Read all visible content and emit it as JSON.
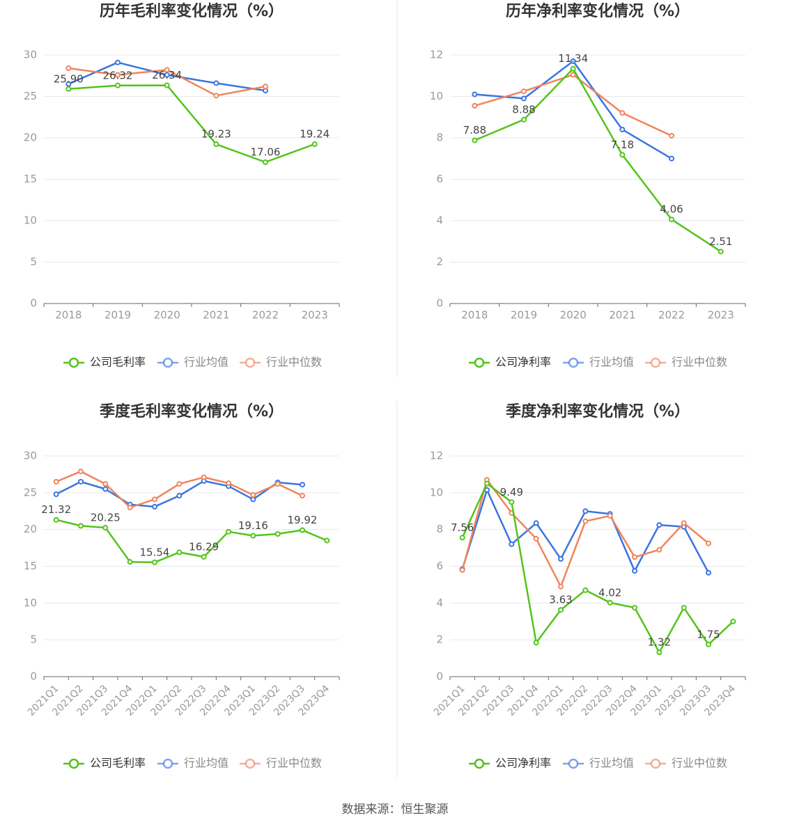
{
  "source_label": "数据来源：恒生聚源",
  "colors": {
    "company": "#52c41a",
    "industry_avg": "#3a74e0",
    "industry_median": "#f0845a",
    "axis": "#666666",
    "grid": "#e6e9f2",
    "title": "#333333",
    "tick": "#999999",
    "divider": "#e8e8e8"
  },
  "chart_data": [
    {
      "type": "line",
      "title": "历年毛利率变化情况（%）",
      "categories": [
        "2018",
        "2019",
        "2020",
        "2021",
        "2022",
        "2023"
      ],
      "ylim": [
        0,
        30
      ],
      "yticks": [
        0,
        5,
        10,
        15,
        20,
        25,
        30
      ],
      "grid": true,
      "legend": "bottom",
      "series": [
        {
          "name": "公司毛利率",
          "role": "company",
          "values": [
            25.9,
            26.32,
            26.34,
            19.23,
            17.06,
            19.24
          ]
        },
        {
          "name": "行业均值",
          "role": "industry_avg",
          "values": [
            26.5,
            29.1,
            27.6,
            26.6,
            25.7,
            null
          ]
        },
        {
          "name": "行业中位数",
          "role": "industry_median",
          "values": [
            28.4,
            27.6,
            28.2,
            25.1,
            26.2,
            null
          ]
        }
      ],
      "labels": [
        {
          "index": 0,
          "text": "25.90"
        },
        {
          "index": 1,
          "text": "26.32"
        },
        {
          "index": 2,
          "text": "26.34"
        },
        {
          "index": 3,
          "text": "19.23"
        },
        {
          "index": 4,
          "text": "17.06"
        },
        {
          "index": 5,
          "text": "19.24"
        }
      ]
    },
    {
      "type": "line",
      "title": "历年净利率变化情况（%）",
      "categories": [
        "2018",
        "2019",
        "2020",
        "2021",
        "2022",
        "2023"
      ],
      "ylim": [
        0,
        12
      ],
      "yticks": [
        0,
        2,
        4,
        6,
        8,
        10,
        12
      ],
      "grid": true,
      "legend": "bottom",
      "series": [
        {
          "name": "公司净利率",
          "role": "company",
          "values": [
            7.88,
            8.88,
            11.34,
            7.18,
            4.06,
            2.51
          ]
        },
        {
          "name": "行业均值",
          "role": "industry_avg",
          "values": [
            10.1,
            9.9,
            11.7,
            8.4,
            7.0,
            null
          ]
        },
        {
          "name": "行业中位数",
          "role": "industry_median",
          "values": [
            9.55,
            10.25,
            11.05,
            9.2,
            8.1,
            null
          ]
        }
      ],
      "labels": [
        {
          "index": 0,
          "text": "7.88"
        },
        {
          "index": 1,
          "text": "8.88"
        },
        {
          "index": 2,
          "text": "11.34"
        },
        {
          "index": 3,
          "text": "7.18"
        },
        {
          "index": 4,
          "text": "4.06"
        },
        {
          "index": 5,
          "text": "2.51"
        }
      ]
    },
    {
      "type": "line",
      "title": "季度毛利率变化情况（%）",
      "categories": [
        "2021Q1",
        "2021Q2",
        "2021Q3",
        "2021Q4",
        "2022Q1",
        "2022Q2",
        "2022Q3",
        "2022Q4",
        "2023Q1",
        "2023Q2",
        "2023Q3",
        "2023Q4"
      ],
      "ylim": [
        0,
        30
      ],
      "yticks": [
        0,
        5,
        10,
        15,
        20,
        25,
        30
      ],
      "grid": true,
      "legend": "bottom",
      "series": [
        {
          "name": "公司毛利率",
          "role": "company",
          "values": [
            21.32,
            20.5,
            20.25,
            15.6,
            15.54,
            16.9,
            16.29,
            19.7,
            19.16,
            19.4,
            19.92,
            18.5
          ]
        },
        {
          "name": "行业均值",
          "role": "industry_avg",
          "values": [
            24.8,
            26.5,
            25.5,
            23.4,
            23.1,
            24.6,
            26.6,
            25.9,
            24.1,
            26.4,
            26.1,
            null
          ]
        },
        {
          "name": "行业中位数",
          "role": "industry_median",
          "values": [
            26.5,
            27.9,
            26.2,
            23.0,
            24.1,
            26.2,
            27.1,
            26.3,
            24.7,
            26.2,
            24.6,
            null
          ]
        }
      ],
      "labels": [
        {
          "index": 0,
          "text": "21.32"
        },
        {
          "index": 2,
          "text": "20.25"
        },
        {
          "index": 4,
          "text": "15.54"
        },
        {
          "index": 6,
          "text": "16.29"
        },
        {
          "index": 8,
          "text": "19.16"
        },
        {
          "index": 10,
          "text": "19.92"
        }
      ]
    },
    {
      "type": "line",
      "title": "季度净利率变化情况（%）",
      "categories": [
        "2021Q1",
        "2021Q2",
        "2021Q3",
        "2021Q4",
        "2022Q1",
        "2022Q2",
        "2022Q3",
        "2022Q4",
        "2023Q1",
        "2023Q2",
        "2023Q3",
        "2023Q4"
      ],
      "ylim": [
        0,
        12
      ],
      "yticks": [
        0,
        2,
        4,
        6,
        8,
        10,
        12
      ],
      "grid": true,
      "legend": "bottom",
      "series": [
        {
          "name": "公司净利率",
          "role": "company",
          "values": [
            7.56,
            10.5,
            9.49,
            1.85,
            3.63,
            4.7,
            4.02,
            3.75,
            1.32,
            3.75,
            1.75,
            3.0
          ]
        },
        {
          "name": "行业均值",
          "role": "industry_avg",
          "values": [
            5.85,
            10.15,
            7.2,
            8.35,
            6.4,
            9.0,
            8.85,
            5.75,
            8.25,
            8.15,
            5.65,
            null
          ]
        },
        {
          "name": "行业中位数",
          "role": "industry_median",
          "values": [
            5.8,
            10.7,
            8.9,
            7.5,
            4.9,
            8.45,
            8.75,
            6.5,
            6.9,
            8.35,
            7.25,
            null
          ]
        }
      ],
      "labels": [
        {
          "index": 0,
          "text": "7.56"
        },
        {
          "index": 2,
          "text": "9.49"
        },
        {
          "index": 4,
          "text": "3.63"
        },
        {
          "index": 6,
          "text": "4.02"
        },
        {
          "index": 8,
          "text": "1.32"
        },
        {
          "index": 10,
          "text": "1.75"
        }
      ]
    }
  ]
}
